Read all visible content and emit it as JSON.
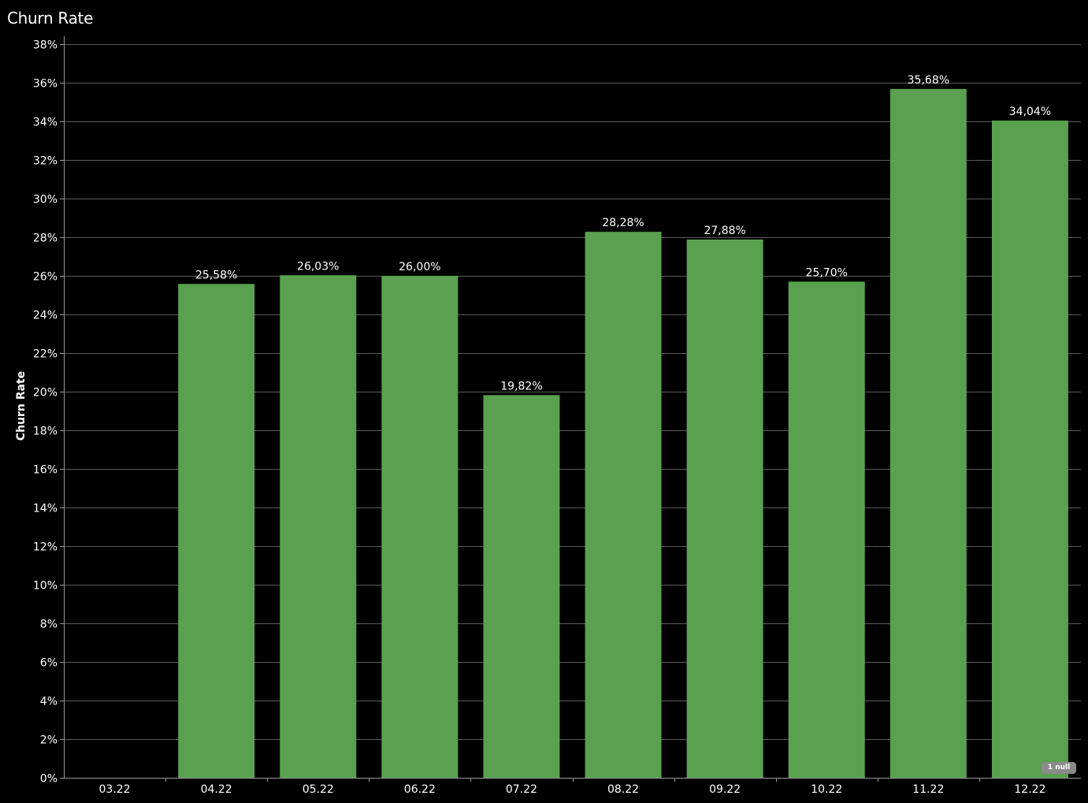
{
  "chart_data": {
    "type": "bar",
    "title": "Churn Rate",
    "ylabel": "Churn Rate",
    "xlabel": "",
    "ylim": [
      0,
      38
    ],
    "y_ticks": [
      "0%",
      "2%",
      "4%",
      "6%",
      "8%",
      "10%",
      "12%",
      "14%",
      "16%",
      "18%",
      "20%",
      "22%",
      "24%",
      "26%",
      "28%",
      "30%",
      "32%",
      "34%",
      "36%",
      "38%"
    ],
    "categories": [
      "03.22",
      "04.22",
      "05.22",
      "06.22",
      "07.22",
      "08.22",
      "09.22",
      "10.22",
      "11.22",
      "12.22"
    ],
    "values": [
      null,
      25.58,
      26.03,
      26.0,
      19.82,
      28.28,
      27.88,
      25.7,
      35.68,
      34.04
    ],
    "data_labels": [
      "",
      "25,58%",
      "26,03%",
      "26,00%",
      "19,82%",
      "28,28%",
      "27,88%",
      "25,70%",
      "35,68%",
      "34,04%"
    ],
    "grid": true,
    "bar_color": "#59a14f",
    "background_color": "#000000",
    "null_indicator": "1 null"
  }
}
